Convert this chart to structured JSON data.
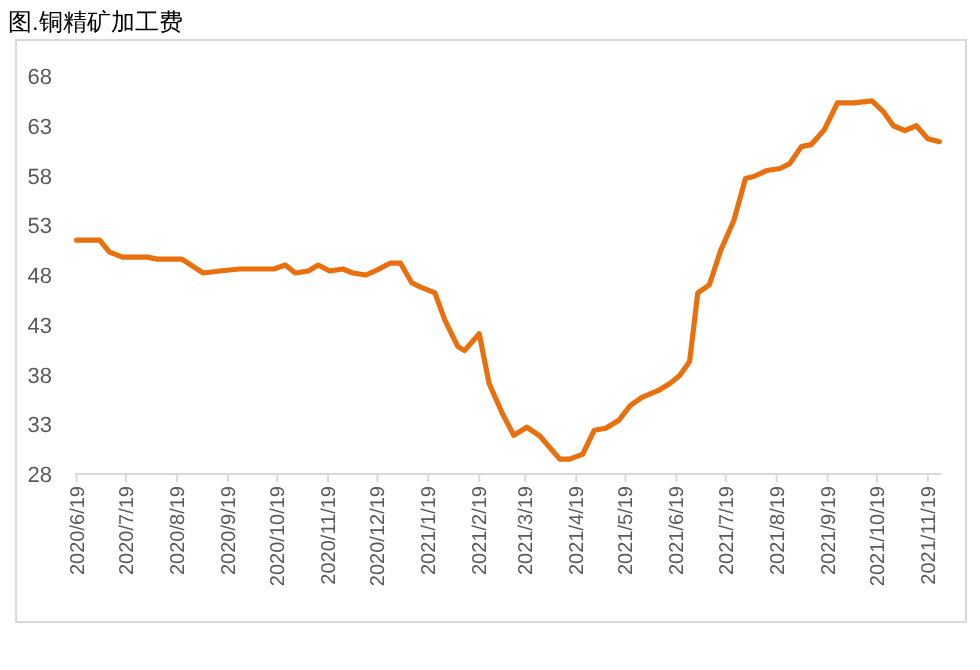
{
  "chart_data": {
    "type": "line",
    "title": "图.铜精矿加工费",
    "x": [
      "2020-06-19",
      "2020-07-03",
      "2020-07-09",
      "2020-07-17",
      "2020-08-01",
      "2020-08-07",
      "2020-08-22",
      "2020-09-04",
      "2020-09-14",
      "2020-09-26",
      "2020-10-17",
      "2020-10-24",
      "2020-10-30",
      "2020-11-07",
      "2020-11-13",
      "2020-11-20",
      "2020-11-28",
      "2020-12-04",
      "2020-12-12",
      "2020-12-20",
      "2020-12-27",
      "2021-01-02",
      "2021-01-09",
      "2021-01-14",
      "2021-01-23",
      "2021-01-29",
      "2021-02-06",
      "2021-02-10",
      "2021-02-19",
      "2021-02-25",
      "2021-03-05",
      "2021-03-12",
      "2021-03-20",
      "2021-03-28",
      "2021-04-09",
      "2021-04-15",
      "2021-04-23",
      "2021-04-30",
      "2021-05-07",
      "2021-05-15",
      "2021-05-22",
      "2021-05-29",
      "2021-06-08",
      "2021-06-15",
      "2021-06-21",
      "2021-06-27",
      "2021-07-02",
      "2021-07-09",
      "2021-07-16",
      "2021-07-24",
      "2021-07-31",
      "2021-08-05",
      "2021-08-13",
      "2021-08-21",
      "2021-08-27",
      "2021-09-03",
      "2021-09-09",
      "2021-09-17",
      "2021-09-25",
      "2021-10-05",
      "2021-10-16",
      "2021-10-23",
      "2021-10-29",
      "2021-11-05",
      "2021-11-12",
      "2021-11-19",
      "2021-11-26"
    ],
    "series": [
      {
        "color": "#e8700e",
        "values": [
          51.5,
          51.5,
          50.3,
          49.8,
          49.8,
          49.6,
          49.6,
          48.2,
          48.4,
          48.6,
          48.6,
          49.0,
          48.2,
          48.4,
          49.0,
          48.4,
          48.6,
          48.2,
          48.0,
          48.6,
          49.2,
          49.2,
          47.2,
          46.8,
          46.2,
          43.5,
          40.8,
          40.4,
          42.1,
          37.1,
          34.1,
          31.9,
          32.7,
          31.8,
          29.5,
          29.5,
          30.0,
          32.4,
          32.6,
          33.4,
          34.9,
          35.7,
          36.4,
          37.1,
          37.9,
          39.3,
          46.2,
          47.0,
          50.5,
          53.5,
          57.7,
          57.9,
          58.5,
          58.7,
          59.2,
          60.9,
          61.1,
          62.6,
          65.3,
          65.3,
          65.5,
          64.4,
          63.0,
          62.5,
          63.0,
          61.7,
          61.4
        ]
      }
    ],
    "xlim": [
      "2020-06-18",
      "2021-11-27"
    ],
    "xticks": [
      {
        "value": "2020-06-19",
        "label": "2020/6/19"
      },
      {
        "value": "2020-07-19",
        "label": "2020/7/19"
      },
      {
        "value": "2020-08-19",
        "label": "2020/8/19"
      },
      {
        "value": "2020-09-19",
        "label": "2020/9/19"
      },
      {
        "value": "2020-10-19",
        "label": "2020/10/19"
      },
      {
        "value": "2020-11-19",
        "label": "2020/11/19"
      },
      {
        "value": "2020-12-19",
        "label": "2020/12/19"
      },
      {
        "value": "2021-01-19",
        "label": "2021/1/19"
      },
      {
        "value": "2021-02-19",
        "label": "2021/2/19"
      },
      {
        "value": "2021-03-19",
        "label": "2021/3/19"
      },
      {
        "value": "2021-04-19",
        "label": "2021/4/19"
      },
      {
        "value": "2021-05-19",
        "label": "2021/5/19"
      },
      {
        "value": "2021-06-19",
        "label": "2021/6/19"
      },
      {
        "value": "2021-07-19",
        "label": "2021/7/19"
      },
      {
        "value": "2021-08-19",
        "label": "2021/8/19"
      },
      {
        "value": "2021-09-19",
        "label": "2021/9/19"
      },
      {
        "value": "2021-10-19",
        "label": "2021/10/19"
      },
      {
        "value": "2021-11-19",
        "label": "2021/11/19"
      }
    ],
    "ylim": [
      28,
      68
    ],
    "yticks": [
      28,
      33,
      38,
      43,
      48,
      53,
      58,
      63,
      68
    ],
    "grid": false,
    "marker": "none",
    "line_style": "solid"
  }
}
